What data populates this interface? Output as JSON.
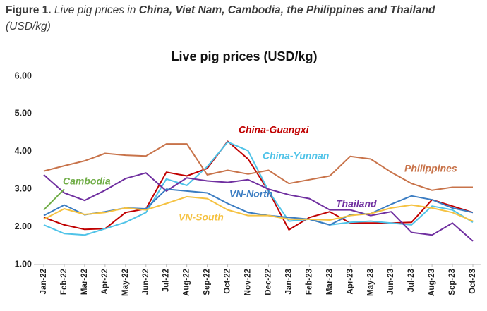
{
  "figure_label": "Figure 1.",
  "caption": [
    {
      "text": "Live pig prices in ",
      "bold": false
    },
    {
      "text": "China, Viet Nam, Cambodia, the Philippines and Thailand",
      "bold": true
    },
    {
      "text": " (USD/kg)",
      "bold": false
    }
  ],
  "chart_data": {
    "type": "line",
    "title": "Live pig prices (USD/kg)",
    "categories": [
      "Jan-22",
      "Feb-22",
      "Mar-22",
      "Apr-22",
      "May-22",
      "Jun-22",
      "Jul-22",
      "Aug-22",
      "Sep-22",
      "Oct-22",
      "Nov-22",
      "Dec-22",
      "Jan-23",
      "Feb-23",
      "Mar-23",
      "Apr-23",
      "May-23",
      "Jun-23",
      "Jul-23",
      "Aug-23",
      "Sep-23",
      "Oct-23"
    ],
    "ylim": [
      1,
      6
    ],
    "yticks": [
      {
        "value": 1,
        "label": "1.00"
      },
      {
        "value": 2,
        "label": "2.00"
      },
      {
        "value": 3,
        "label": "3.00"
      },
      {
        "value": 4,
        "label": "4.00"
      },
      {
        "value": 5,
        "label": "5.00"
      },
      {
        "value": 6,
        "label": "6.00"
      }
    ],
    "grid": false,
    "series": [
      {
        "name": "China-Guangxi",
        "color": "#c00000",
        "values": [
          2.25,
          2.05,
          1.93,
          1.95,
          2.38,
          2.48,
          3.45,
          3.35,
          3.55,
          4.27,
          3.8,
          2.95,
          1.92,
          2.25,
          2.4,
          2.1,
          2.1,
          2.1,
          2.12,
          2.72,
          2.55,
          2.38
        ]
      },
      {
        "name": "China-Yunnan",
        "color": "#4fc3e8",
        "values": [
          2.05,
          1.82,
          1.78,
          1.95,
          2.12,
          2.38,
          3.27,
          3.1,
          3.6,
          4.25,
          4.02,
          2.95,
          2.15,
          2.2,
          2.05,
          2.12,
          2.15,
          2.1,
          2.05,
          2.55,
          2.45,
          2.12
        ]
      },
      {
        "name": "Philippines",
        "color": "#c8734a",
        "values": [
          3.48,
          3.62,
          3.75,
          3.95,
          3.9,
          3.88,
          4.2,
          4.2,
          3.38,
          3.5,
          3.4,
          3.5,
          3.15,
          3.25,
          3.35,
          3.87,
          3.8,
          3.45,
          3.15,
          2.97,
          3.05,
          3.05
        ]
      },
      {
        "name": "Thailand",
        "color": "#7030a0",
        "values": [
          3.38,
          2.9,
          2.7,
          2.97,
          3.28,
          3.43,
          2.95,
          3.3,
          3.22,
          3.18,
          3.25,
          3.0,
          2.85,
          2.75,
          2.45,
          2.45,
          2.3,
          2.4,
          1.85,
          1.78,
          2.1,
          1.62
        ]
      },
      {
        "name": "VN-North",
        "color": "#3a7cc2",
        "values": [
          2.3,
          2.58,
          2.32,
          2.4,
          2.5,
          2.48,
          3.0,
          2.95,
          2.9,
          2.62,
          2.38,
          2.3,
          2.25,
          2.2,
          2.05,
          2.32,
          2.35,
          2.6,
          2.82,
          2.72,
          2.5,
          2.38
        ]
      },
      {
        "name": "VN-South",
        "color": "#f5c242",
        "values": [
          2.2,
          2.48,
          2.33,
          2.38,
          2.5,
          2.45,
          2.62,
          2.8,
          2.75,
          2.45,
          2.3,
          2.3,
          2.2,
          2.2,
          2.18,
          2.3,
          2.35,
          2.5,
          2.58,
          2.5,
          2.38,
          2.15
        ]
      },
      {
        "name": "Cambodia",
        "color": "#70ad47",
        "values": [
          2.45,
          3.0,
          null,
          null,
          null,
          null,
          null,
          null,
          null,
          null,
          null,
          null,
          null,
          null,
          null,
          null,
          null,
          null,
          null,
          null,
          null,
          null
        ]
      }
    ]
  }
}
